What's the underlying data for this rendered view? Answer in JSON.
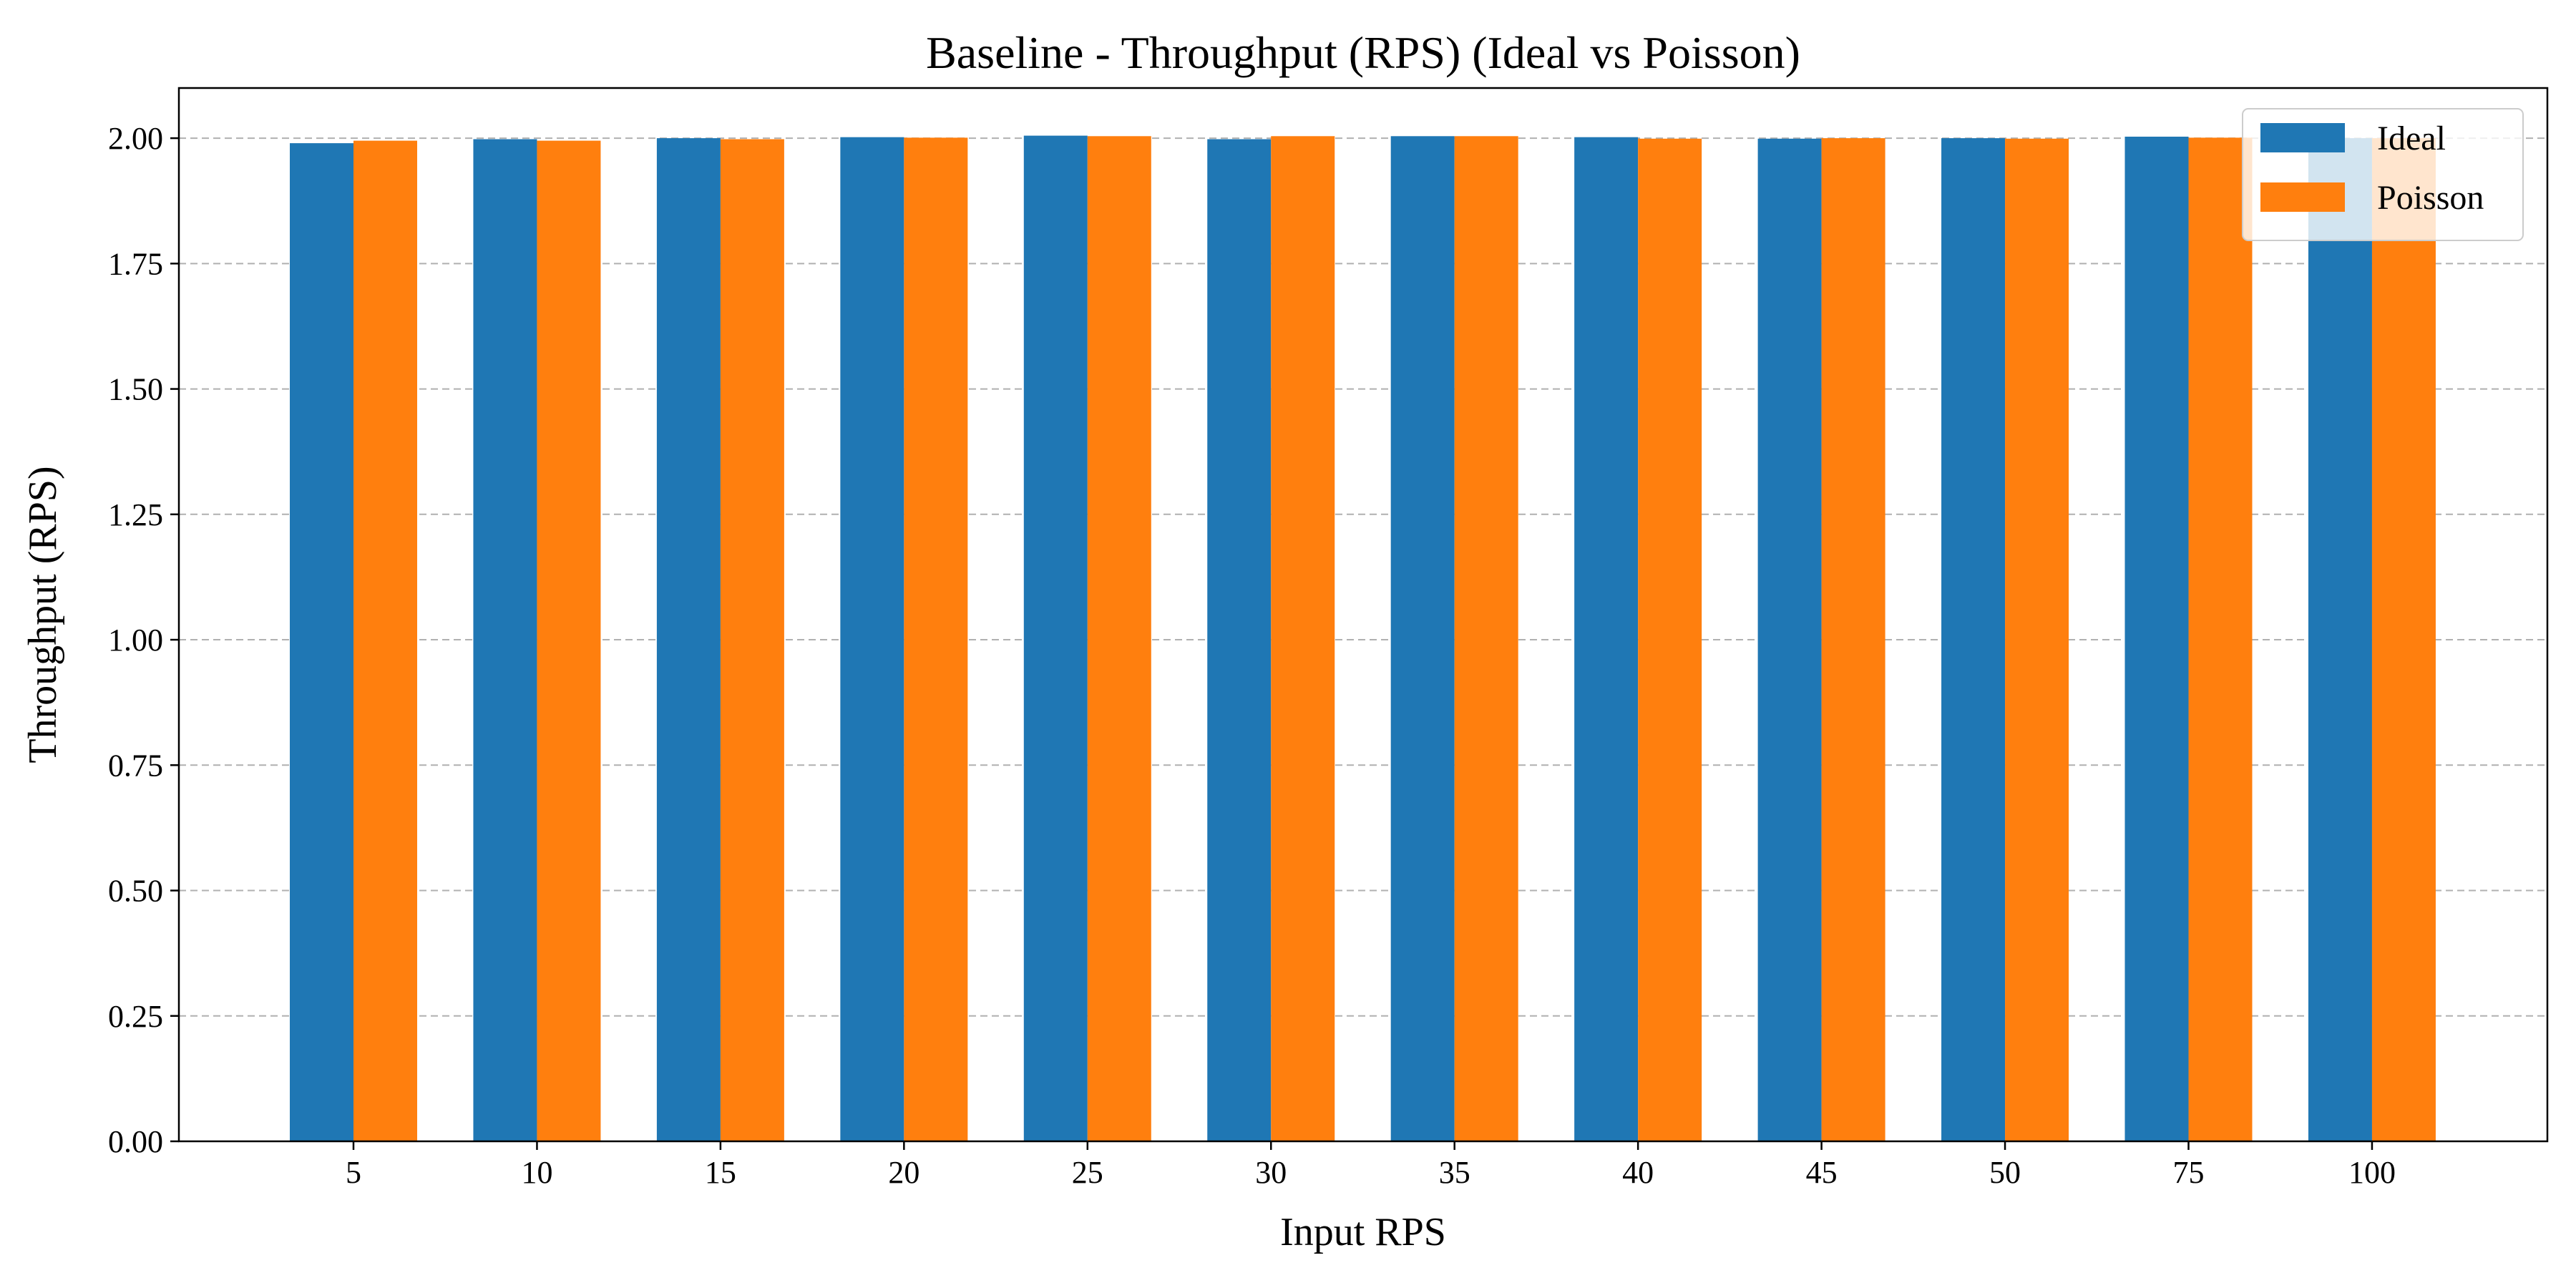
{
  "chart_data": {
    "type": "bar",
    "title": "Baseline - Throughput (RPS) (Ideal vs Poisson)",
    "xlabel": "Input RPS",
    "ylabel": "Throughput (RPS)",
    "categories": [
      "5",
      "10",
      "15",
      "20",
      "25",
      "30",
      "35",
      "40",
      "45",
      "50",
      "75",
      "100"
    ],
    "series": [
      {
        "name": "Ideal",
        "color": "#1f77b4",
        "values": [
          1.99,
          1.998,
          2.0,
          2.002,
          2.005,
          1.998,
          2.004,
          2.002,
          1.999,
          2.0,
          2.003,
          2.0
        ]
      },
      {
        "name": "Poisson",
        "color": "#ff7f0e",
        "values": [
          1.995,
          1.995,
          1.998,
          2.001,
          2.004,
          2.004,
          2.004,
          1.999,
          2.0,
          1.999,
          2.001,
          2.0
        ]
      }
    ],
    "ylim": [
      0,
      2.1
    ],
    "yticks": [
      "0.00",
      "0.25",
      "0.50",
      "0.75",
      "1.00",
      "1.25",
      "1.50",
      "1.75",
      "2.00"
    ],
    "grid": "y-dashed",
    "legend_position": "top-right"
  }
}
